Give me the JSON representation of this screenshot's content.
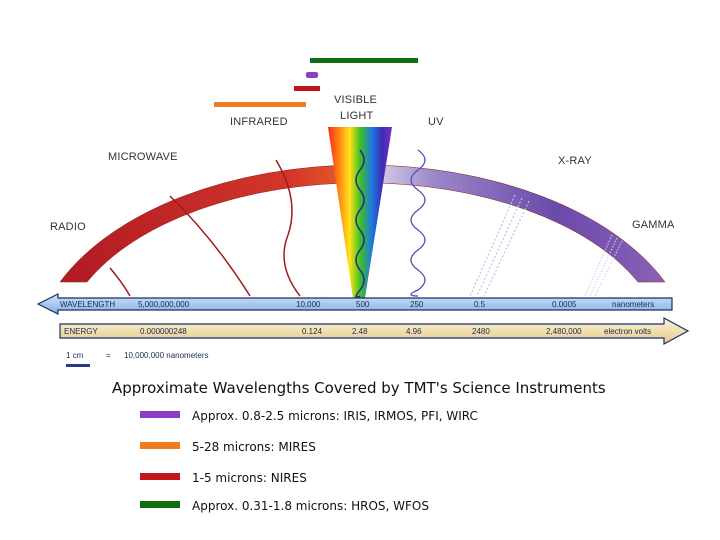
{
  "bands": {
    "radio": "RADIO",
    "microwave": "MICROWAVE",
    "infrared": "INFRARED",
    "visible_line1": "VISIBLE",
    "visible_line2": "LIGHT",
    "uv": "UV",
    "xray": "X-RAY",
    "gamma": "GAMMA"
  },
  "wavelength_axis": {
    "label": "WAVELENGTH",
    "values": [
      "5,000,000,000",
      "10,000",
      "500",
      "250",
      "0.5",
      "0.0005"
    ],
    "unit": "nanometers"
  },
  "energy_axis": {
    "label": "ENERGY",
    "values": [
      "0.000000248",
      "0.124",
      "2.48",
      "4.96",
      "2480",
      "2,480,000"
    ],
    "unit": "electron volts"
  },
  "scale_note": {
    "left": "1 cm",
    "eq": "=",
    "right": "10,000,000 nanometers"
  },
  "legend": {
    "title": "Approximate Wavelengths Covered by TMT's Science Instruments",
    "items": [
      {
        "color": "#8b3fc8",
        "text": "Approx. 0.8-2.5 microns: IRIS, IRMOS, PFI, WIRC"
      },
      {
        "color": "#f07a1e",
        "text": "5-28 microns: MIRES"
      },
      {
        "color": "#c0151a",
        "text": "1-5 microns: NIRES"
      },
      {
        "color": "#0f6e12",
        "text": "Approx. 0.31-1.8 microns: HROS, WFOS"
      }
    ]
  }
}
